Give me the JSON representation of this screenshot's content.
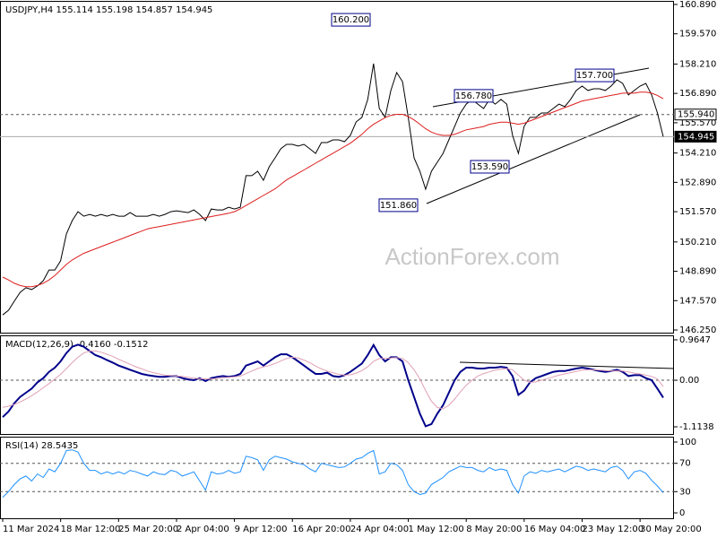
{
  "watermark": "ActionForex.com",
  "chart_data": [
    {
      "type": "line",
      "title": "USDJPY,H4  155.114 155.198 154.857 154.945",
      "categories": [
        "11 Mar 2024",
        null,
        null,
        null,
        null,
        null,
        null,
        null,
        null,
        null,
        "18 Mar 12:00",
        null,
        null,
        null,
        null,
        null,
        null,
        null,
        null,
        null,
        "25 Mar 20:00",
        null,
        null,
        null,
        null,
        null,
        null,
        null,
        null,
        null,
        "2 Apr 04:00",
        null,
        null,
        null,
        null,
        null,
        null,
        null,
        null,
        null,
        "9 Apr 12:00",
        null,
        null,
        null,
        null,
        null,
        null,
        null,
        null,
        null,
        "16 Apr 20:00",
        null,
        null,
        null,
        null,
        null,
        null,
        null,
        null,
        null,
        "24 Apr 04:00",
        null,
        null,
        null,
        null,
        null,
        null,
        null,
        null,
        null,
        "1 May 12:00",
        null,
        null,
        null,
        null,
        null,
        null,
        null,
        null,
        null,
        "8 May 20:00",
        null,
        null,
        null,
        null,
        null,
        null,
        null,
        null,
        null,
        "16 May 04:00",
        null,
        null,
        null,
        null,
        null,
        null,
        null,
        null,
        null,
        "23 May 12:00",
        null,
        null,
        null,
        null,
        null,
        null,
        null,
        null,
        null,
        "30 May 20:00",
        null,
        null,
        null,
        null
      ],
      "series": [
        {
          "color": "#000000",
          "width": 1,
          "values": [
            146.93,
            147.14,
            147.54,
            147.94,
            148.15,
            148.07,
            148.23,
            148.47,
            148.95,
            148.95,
            149.36,
            150.57,
            151.17,
            151.57,
            151.37,
            151.45,
            151.37,
            151.45,
            151.37,
            151.45,
            151.37,
            151.37,
            151.53,
            151.37,
            151.37,
            151.37,
            151.45,
            151.37,
            151.45,
            151.57,
            151.61,
            151.57,
            151.53,
            151.65,
            151.45,
            151.17,
            151.69,
            151.65,
            151.65,
            151.77,
            151.69,
            151.77,
            153.19,
            153.19,
            153.39,
            152.98,
            153.59,
            153.99,
            154.4,
            154.6,
            154.6,
            154.52,
            154.6,
            154.4,
            154.19,
            154.68,
            154.68,
            154.8,
            154.8,
            154.72,
            155.0,
            155.61,
            155.81,
            156.62,
            158.23,
            156.21,
            155.81,
            157.02,
            157.83,
            157.42,
            155.81,
            153.99,
            153.39,
            152.58,
            153.39,
            153.79,
            154.19,
            154.8,
            155.41,
            156.01,
            156.41,
            156.62,
            156.41,
            156.21,
            156.62,
            156.41,
            156.62,
            156.41,
            155.0,
            154.19,
            155.41,
            155.81,
            155.81,
            156.01,
            156.01,
            156.21,
            156.41,
            156.29,
            156.62,
            157.02,
            157.22,
            157.02,
            157.1,
            157.1,
            157.02,
            157.22,
            157.5,
            157.34,
            156.82,
            157.02,
            157.22,
            157.34,
            156.82,
            156.01,
            154.945
          ]
        },
        {
          "color": "#dd1e1e",
          "width": 1,
          "values": [
            148.63,
            148.5,
            148.35,
            148.25,
            148.2,
            148.2,
            148.25,
            148.35,
            148.5,
            148.7,
            148.95,
            149.2,
            149.4,
            149.55,
            149.7,
            149.8,
            149.9,
            150.0,
            150.1,
            150.2,
            150.3,
            150.4,
            150.5,
            150.6,
            150.7,
            150.8,
            150.85,
            150.9,
            150.95,
            151.0,
            151.05,
            151.1,
            151.15,
            151.2,
            151.25,
            151.3,
            151.35,
            151.4,
            151.45,
            151.5,
            151.57,
            151.7,
            151.85,
            152.0,
            152.15,
            152.3,
            152.45,
            152.6,
            152.8,
            153.0,
            153.15,
            153.3,
            153.45,
            153.6,
            153.75,
            153.9,
            154.05,
            154.2,
            154.35,
            154.5,
            154.65,
            154.85,
            155.05,
            155.3,
            155.5,
            155.65,
            155.8,
            155.9,
            155.95,
            155.95,
            155.85,
            155.7,
            155.5,
            155.3,
            155.15,
            155.05,
            155.0,
            155.0,
            155.05,
            155.15,
            155.25,
            155.3,
            155.35,
            155.4,
            155.5,
            155.55,
            155.6,
            155.6,
            155.55,
            155.5,
            155.55,
            155.65,
            155.75,
            155.85,
            155.95,
            156.05,
            156.15,
            156.25,
            156.35,
            156.45,
            156.55,
            156.6,
            156.65,
            156.7,
            156.75,
            156.8,
            156.85,
            156.9,
            156.9,
            156.9,
            156.95,
            156.95,
            156.9,
            156.8,
            156.65
          ]
        }
      ],
      "ylim": [
        146.13,
        161.05
      ],
      "yticks": [
        {
          "value": 146.25,
          "label": "146.250"
        },
        {
          "value": 147.57,
          "label": "147.570"
        },
        {
          "value": 148.89,
          "label": "148.890"
        },
        {
          "value": 150.21,
          "label": "150.210"
        },
        {
          "value": 151.57,
          "label": "151.570"
        },
        {
          "value": 152.89,
          "label": "152.890"
        },
        {
          "value": 154.21,
          "label": "154.210"
        },
        {
          "value": 155.57,
          "label": "155.570"
        },
        {
          "value": 156.89,
          "label": "156.890"
        },
        {
          "value": 158.21,
          "label": "158.210"
        },
        {
          "value": 159.57,
          "label": "159.570"
        },
        {
          "value": 160.89,
          "label": "160.890"
        }
      ],
      "levels": [
        {
          "value": 155.94,
          "label": "155.940",
          "style": "dashed"
        },
        {
          "value": 154.945,
          "label": "154.945",
          "style": "solid"
        }
      ],
      "annotations": [
        {
          "value": 160.2,
          "label": "160.200"
        },
        {
          "value": 156.78,
          "label": "156.780"
        },
        {
          "value": 157.7,
          "label": "157.700"
        },
        {
          "value": 153.59,
          "label": "153.590"
        },
        {
          "value": 151.86,
          "label": "151.860"
        }
      ]
    },
    {
      "type": "line",
      "title": "MACD(12,26,9) -0.4160 -0.1512",
      "series": [
        {
          "color": "#00008b",
          "width": 2,
          "values": [
            -0.88,
            -0.75,
            -0.55,
            -0.4,
            -0.3,
            -0.2,
            -0.05,
            0.05,
            0.2,
            0.3,
            0.45,
            0.65,
            0.8,
            0.85,
            0.8,
            0.7,
            0.6,
            0.55,
            0.48,
            0.42,
            0.35,
            0.3,
            0.25,
            0.2,
            0.15,
            0.12,
            0.1,
            0.08,
            0.08,
            0.1,
            0.1,
            0.05,
            0.02,
            0.0,
            0.05,
            -0.02,
            0.05,
            0.08,
            0.1,
            0.08,
            0.1,
            0.15,
            0.35,
            0.4,
            0.45,
            0.35,
            0.45,
            0.55,
            0.62,
            0.62,
            0.55,
            0.45,
            0.35,
            0.25,
            0.15,
            0.15,
            0.18,
            0.1,
            0.08,
            0.12,
            0.2,
            0.3,
            0.4,
            0.6,
            0.84,
            0.6,
            0.45,
            0.55,
            0.55,
            0.45,
            0.0,
            -0.4,
            -0.8,
            -1.1,
            -1.05,
            -0.8,
            -0.6,
            -0.3,
            0.0,
            0.2,
            0.3,
            0.3,
            0.28,
            0.28,
            0.3,
            0.3,
            0.32,
            0.3,
            0.1,
            -0.35,
            -0.25,
            -0.05,
            0.05,
            0.1,
            0.15,
            0.2,
            0.22,
            0.22,
            0.25,
            0.28,
            0.3,
            0.28,
            0.25,
            0.22,
            0.2,
            0.22,
            0.25,
            0.2,
            0.1,
            0.12,
            0.12,
            0.05,
            0.0,
            -0.2,
            -0.416
          ]
        },
        {
          "color": "#e0a0b4",
          "width": 1,
          "values": [
            -0.65,
            -0.62,
            -0.58,
            -0.52,
            -0.45,
            -0.37,
            -0.28,
            -0.18,
            -0.08,
            0.03,
            0.14,
            0.28,
            0.42,
            0.55,
            0.65,
            0.7,
            0.7,
            0.67,
            0.62,
            0.57,
            0.5,
            0.44,
            0.38,
            0.32,
            0.27,
            0.22,
            0.18,
            0.15,
            0.12,
            0.11,
            0.1,
            0.09,
            0.07,
            0.05,
            0.04,
            0.03,
            0.03,
            0.04,
            0.06,
            0.07,
            0.08,
            0.1,
            0.16,
            0.22,
            0.28,
            0.32,
            0.35,
            0.4,
            0.46,
            0.52,
            0.55,
            0.53,
            0.48,
            0.42,
            0.34,
            0.27,
            0.22,
            0.18,
            0.14,
            0.12,
            0.13,
            0.17,
            0.23,
            0.32,
            0.45,
            0.52,
            0.52,
            0.53,
            0.54,
            0.52,
            0.42,
            0.25,
            0.03,
            -0.25,
            -0.5,
            -0.65,
            -0.68,
            -0.6,
            -0.45,
            -0.28,
            -0.12,
            0.0,
            0.1,
            0.16,
            0.2,
            0.24,
            0.26,
            0.28,
            0.25,
            0.12,
            0.0,
            -0.05,
            -0.04,
            0.0,
            0.04,
            0.08,
            0.12,
            0.15,
            0.18,
            0.21,
            0.24,
            0.25,
            0.25,
            0.24,
            0.23,
            0.22,
            0.22,
            0.22,
            0.2,
            0.17,
            0.15,
            0.12,
            0.09,
            0.03,
            -0.1512
          ]
        }
      ],
      "ylim": [
        -1.285,
        1.072
      ],
      "yticks": [
        -1.1138,
        {
          "value": 0,
          "label": "0.00"
        },
        0.9647
      ],
      "levels": [
        0
      ]
    },
    {
      "type": "line",
      "title": "RSI(14) 28.5435",
      "series": [
        {
          "color": "#1e90ff",
          "width": 1,
          "values": [
            22,
            30,
            40,
            48,
            52,
            45,
            55,
            50,
            62,
            58,
            70,
            88,
            89,
            86,
            70,
            60,
            60,
            55,
            58,
            55,
            58,
            55,
            60,
            58,
            55,
            52,
            58,
            55,
            54,
            60,
            58,
            52,
            55,
            58,
            45,
            32,
            58,
            55,
            56,
            60,
            56,
            58,
            80,
            78,
            75,
            60,
            75,
            80,
            78,
            76,
            72,
            70,
            68,
            62,
            58,
            70,
            68,
            66,
            64,
            65,
            70,
            76,
            78,
            84,
            88,
            55,
            58,
            70,
            68,
            60,
            40,
            30,
            26,
            28,
            40,
            45,
            50,
            58,
            62,
            66,
            64,
            64,
            60,
            58,
            64,
            60,
            62,
            60,
            40,
            28,
            52,
            58,
            56,
            60,
            58,
            60,
            62,
            58,
            62,
            66,
            64,
            60,
            62,
            60,
            58,
            64,
            66,
            60,
            48,
            58,
            60,
            56,
            46,
            38,
            28.5435
          ]
        }
      ],
      "ylim": [
        -7.6,
        107.6
      ],
      "yticks": [
        0,
        30,
        70,
        100
      ],
      "levels": [
        30,
        70
      ]
    }
  ]
}
